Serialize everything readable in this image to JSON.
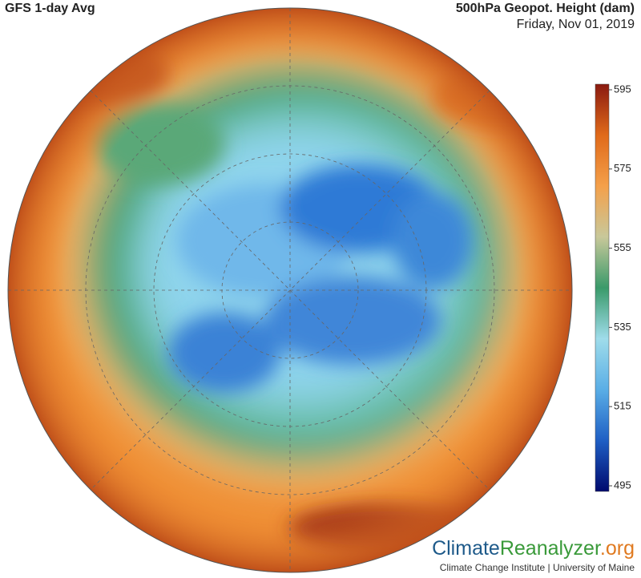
{
  "header": {
    "title": "GFS 1-day Avg",
    "variable": "500hPa Geopot. Height (dam)",
    "date": "Friday, Nov 01, 2019"
  },
  "colorbar": {
    "range": [
      495,
      595
    ],
    "ticks": [
      595,
      575,
      555,
      535,
      515,
      495
    ],
    "colors": [
      "#000a6e",
      "#1f5fc4",
      "#5aaee6",
      "#9fdcea",
      "#3a9a6a",
      "#c8c89a",
      "#f4a04a",
      "#e06a1a",
      "#8a1a10"
    ]
  },
  "logo": {
    "climate": "Climate",
    "reanalyzer": "Reanalyzer",
    "org": ".org",
    "credit": "Climate Change Institute | University of Maine"
  }
}
